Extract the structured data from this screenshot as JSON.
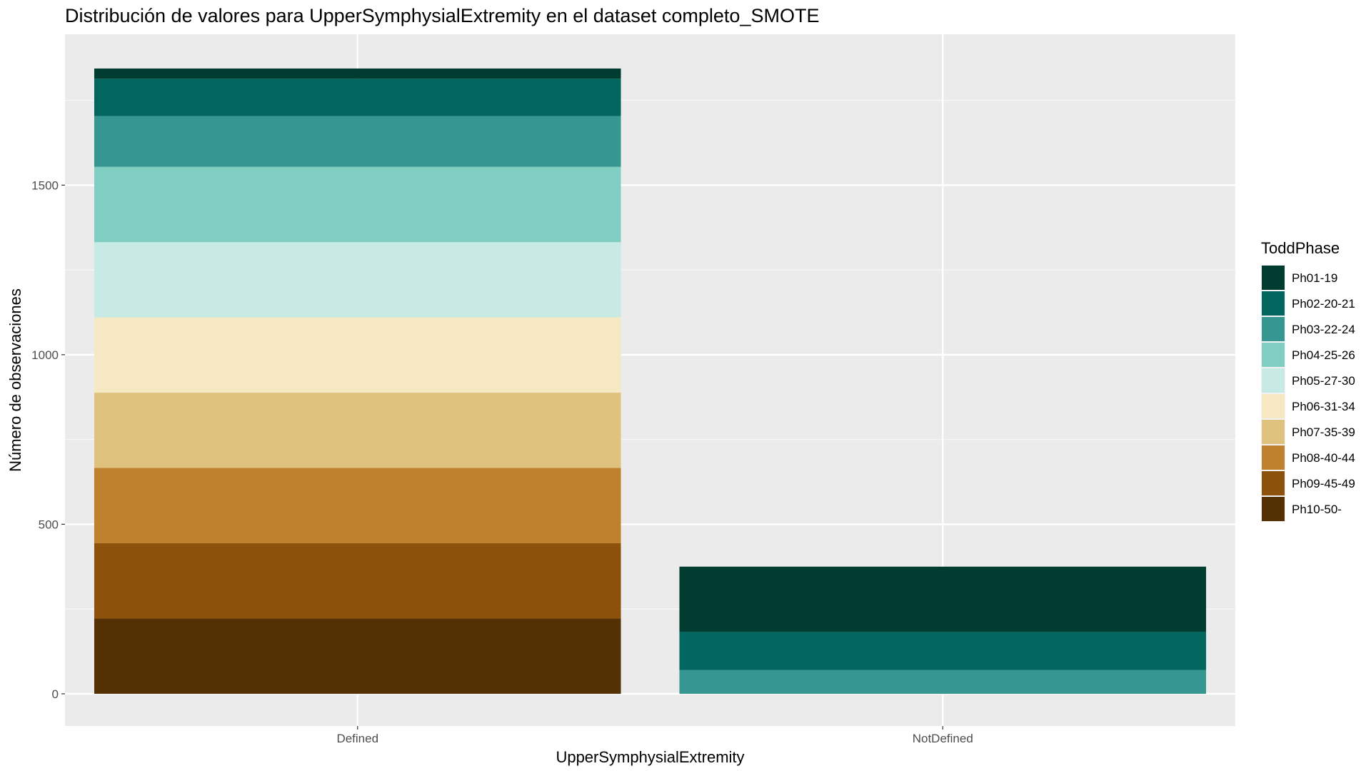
{
  "chart_data": {
    "type": "bar",
    "stacked": true,
    "title": "Distribución de valores para UpperSymphysialExtremity en el dataset completo_SMOTE",
    "xlabel": "UpperSymphysialExtremity",
    "ylabel": "Número de observaciones",
    "categories": [
      "Defined",
      "NotDefined"
    ],
    "ylim": [
      -95,
      1945
    ],
    "yticks": [
      0,
      500,
      1000,
      1500
    ],
    "grid": true,
    "legend": {
      "title": "ToddPhase",
      "position": "right"
    },
    "series": [
      {
        "name": "Ph01-19",
        "color": "#003c30",
        "values": [
          30,
          192
        ]
      },
      {
        "name": "Ph02-20-21",
        "color": "#01665e",
        "values": [
          110,
          113
        ]
      },
      {
        "name": "Ph03-22-24",
        "color": "#35978f",
        "values": [
          150,
          70
        ]
      },
      {
        "name": "Ph04-25-26",
        "color": "#80cdc1",
        "values": [
          222,
          0
        ]
      },
      {
        "name": "Ph05-27-30",
        "color": "#c7eae5",
        "values": [
          222,
          0
        ]
      },
      {
        "name": "Ph06-31-34",
        "color": "#f6e8c3",
        "values": [
          222,
          0
        ]
      },
      {
        "name": "Ph07-35-39",
        "color": "#dfc27d",
        "values": [
          222,
          0
        ]
      },
      {
        "name": "Ph08-40-44",
        "color": "#bf812d",
        "values": [
          222,
          0
        ]
      },
      {
        "name": "Ph09-45-49",
        "color": "#8c510a",
        "values": [
          222,
          0
        ]
      },
      {
        "name": "Ph10-50-",
        "color": "#543005",
        "values": [
          222,
          0
        ]
      }
    ]
  }
}
